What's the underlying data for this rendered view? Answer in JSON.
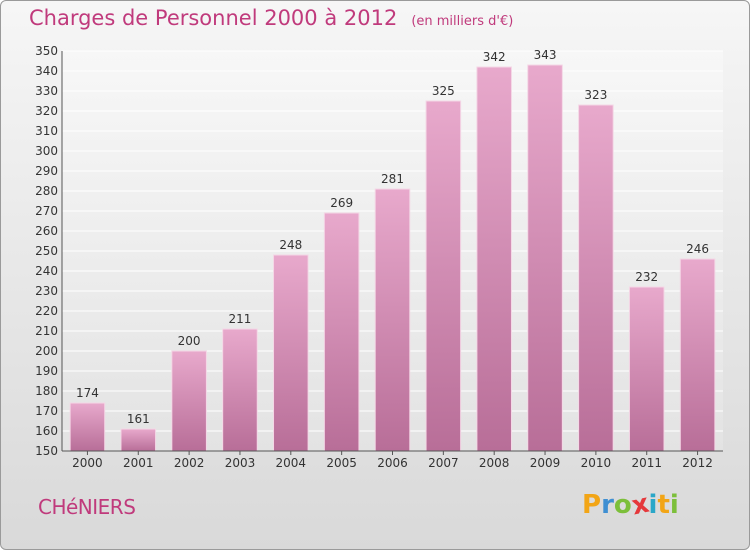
{
  "chart_data": {
    "type": "bar",
    "title": "Charges de Personnel 2000 à 2012",
    "subtitle": "(en milliers d'€)",
    "categories": [
      "2000",
      "2001",
      "2002",
      "2003",
      "2004",
      "2005",
      "2006",
      "2007",
      "2008",
      "2009",
      "2010",
      "2011",
      "2012"
    ],
    "values": [
      174,
      161,
      200,
      211,
      248,
      269,
      281,
      325,
      342,
      343,
      323,
      232,
      246
    ],
    "ylim": [
      150,
      350
    ],
    "ytick_step": 10,
    "grid": true,
    "bar_color": "#d98ab5"
  },
  "footer": {
    "commune": "CHéNIERS",
    "logo_text": "Proxiti"
  },
  "colors": {
    "accent": "#c03a7c",
    "logo": [
      "#f2a516",
      "#3f8fd2",
      "#7cbf3a",
      "#e5383b",
      "#2aa7c8",
      "#f2a516",
      "#7cbf3a"
    ]
  }
}
